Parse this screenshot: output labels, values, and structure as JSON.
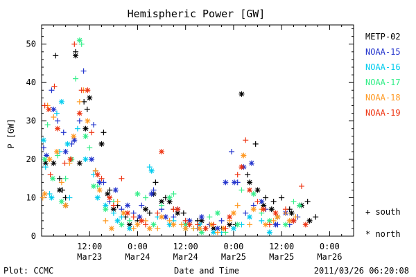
{
  "chart_data": {
    "type": "scatter",
    "title": "Hemispheric Power [GW]",
    "ylabel": "P [GW]",
    "xlabel": "Date and Time",
    "ylim": [
      0,
      55
    ],
    "xlim_hours_from_start": [
      0,
      78
    ],
    "y_ticks": [
      0,
      10,
      20,
      30,
      40,
      50
    ],
    "x_ticks": [
      {
        "time": "12:00",
        "date": "Mar23"
      },
      {
        "time": "0:00",
        "date": "Mar24"
      },
      {
        "time": "12:00",
        "date": "Mar24"
      },
      {
        "time": "0:00",
        "date": "Mar25"
      },
      {
        "time": "12:00",
        "date": "Mar25"
      },
      {
        "time": "0:00",
        "date": "Mar26"
      }
    ],
    "legend_placement": "right",
    "series": [
      {
        "name": "METP-02",
        "color": "#000000",
        "south": [
          [
            3.5,
            47
          ],
          [
            4.5,
            15
          ],
          [
            5.2,
            12
          ],
          [
            6,
            10
          ],
          [
            8.5,
            48
          ],
          [
            10.6,
            35
          ],
          [
            11.4,
            33
          ],
          [
            13.5,
            17
          ],
          [
            15.5,
            27
          ],
          [
            17,
            12
          ],
          [
            19,
            8
          ],
          [
            21,
            5
          ],
          [
            24,
            4
          ],
          [
            27,
            6
          ],
          [
            28.5,
            14
          ],
          [
            31,
            10
          ],
          [
            33,
            7
          ],
          [
            35.5,
            6
          ],
          [
            39,
            4
          ],
          [
            42,
            3
          ],
          [
            45,
            2
          ],
          [
            48.5,
            3
          ],
          [
            51.5,
            16
          ],
          [
            53.5,
            24
          ],
          [
            56,
            10
          ],
          [
            58,
            9
          ],
          [
            60,
            10
          ],
          [
            62,
            7
          ],
          [
            64.5,
            8
          ],
          [
            66.5,
            9
          ],
          [
            68.5,
            5
          ]
        ],
        "north": [
          [
            1,
            19
          ],
          [
            3,
            19
          ],
          [
            4.5,
            12
          ],
          [
            6,
            8
          ],
          [
            8.5,
            47
          ],
          [
            9.5,
            19
          ],
          [
            11,
            28
          ],
          [
            12,
            36
          ],
          [
            15,
            24
          ],
          [
            16.5,
            11
          ],
          [
            18,
            7
          ],
          [
            22,
            3
          ],
          [
            26,
            7
          ],
          [
            28,
            11
          ],
          [
            30,
            9
          ],
          [
            32,
            9
          ],
          [
            34,
            6
          ],
          [
            36,
            3
          ],
          [
            40,
            4
          ],
          [
            43,
            2
          ],
          [
            47,
            3
          ],
          [
            50,
            37
          ],
          [
            52,
            14
          ],
          [
            54,
            12
          ],
          [
            55.5,
            8
          ],
          [
            57.5,
            7
          ],
          [
            59,
            5
          ],
          [
            62.5,
            6
          ],
          [
            65,
            8
          ],
          [
            67,
            4
          ]
        ]
      },
      {
        "name": "NOAA-15",
        "color": "#2233cc",
        "south": [
          [
            0.5,
            23
          ],
          [
            2.5,
            38
          ],
          [
            4,
            30
          ],
          [
            5.5,
            27
          ],
          [
            7.5,
            24
          ],
          [
            9.5,
            30
          ],
          [
            10.5,
            43
          ],
          [
            13,
            29
          ],
          [
            15.5,
            14
          ],
          [
            17,
            9
          ],
          [
            20,
            7
          ],
          [
            23,
            6
          ],
          [
            25,
            8
          ],
          [
            28,
            12
          ],
          [
            30,
            7
          ],
          [
            33,
            5
          ],
          [
            36,
            4
          ],
          [
            39,
            2
          ],
          [
            42,
            3
          ],
          [
            45,
            4
          ],
          [
            47.5,
            22
          ],
          [
            49,
            14
          ],
          [
            51,
            6
          ],
          [
            53,
            8
          ],
          [
            56,
            7
          ],
          [
            59,
            3
          ],
          [
            62,
            3
          ],
          [
            64,
            5
          ]
        ],
        "north": [
          [
            1.2,
            21
          ],
          [
            3,
            33
          ],
          [
            6,
            22
          ],
          [
            8.2,
            25
          ],
          [
            12.5,
            20
          ],
          [
            14.5,
            14
          ],
          [
            18.5,
            12
          ],
          [
            21.5,
            8
          ],
          [
            24.5,
            5
          ],
          [
            27.5,
            11
          ],
          [
            31,
            5
          ],
          [
            34,
            7
          ],
          [
            37,
            4
          ],
          [
            40,
            5
          ],
          [
            44,
            2
          ],
          [
            46,
            14
          ],
          [
            48.2,
            14
          ],
          [
            50.5,
            18
          ],
          [
            52.5,
            19
          ],
          [
            55,
            9
          ],
          [
            58.5,
            3
          ],
          [
            61,
            6
          ],
          [
            63,
            4
          ]
        ]
      },
      {
        "name": "NOAA-16",
        "color": "#00ccee",
        "south": [
          [
            1,
            18
          ],
          [
            2,
            11
          ],
          [
            3.8,
            32
          ],
          [
            4.5,
            22
          ],
          [
            7,
            10
          ],
          [
            9,
            28
          ],
          [
            13,
            16
          ],
          [
            18,
            6
          ],
          [
            20,
            5
          ],
          [
            27,
            18
          ],
          [
            29,
            5
          ],
          [
            33,
            4
          ],
          [
            37,
            3
          ],
          [
            41,
            2
          ],
          [
            45,
            1
          ],
          [
            50,
            3
          ],
          [
            55,
            4
          ]
        ],
        "north": [
          [
            0.5,
            25
          ],
          [
            2.5,
            10
          ],
          [
            5,
            35
          ],
          [
            6.5,
            24
          ],
          [
            11,
            20
          ],
          [
            14,
            10
          ],
          [
            16,
            8
          ],
          [
            19,
            4
          ],
          [
            22,
            2
          ],
          [
            27.5,
            17
          ],
          [
            32,
            3
          ],
          [
            36,
            2
          ],
          [
            39.5,
            3
          ],
          [
            43,
            1
          ],
          [
            48,
            2
          ],
          [
            52,
            5
          ],
          [
            57,
            1
          ]
        ]
      },
      {
        "name": "NOAA-17",
        "color": "#33ee88",
        "south": [
          [
            1.5,
            29
          ],
          [
            4,
            21
          ],
          [
            6,
            15
          ],
          [
            8.5,
            41
          ],
          [
            10,
            50
          ],
          [
            12,
            23
          ],
          [
            14,
            13
          ],
          [
            18,
            9
          ],
          [
            22,
            4
          ],
          [
            26,
            10
          ],
          [
            30,
            8
          ],
          [
            33,
            11
          ],
          [
            38,
            2
          ],
          [
            42,
            5
          ],
          [
            46,
            1
          ],
          [
            50,
            12
          ],
          [
            55,
            6
          ],
          [
            59,
            5
          ],
          [
            63,
            9
          ]
        ],
        "north": [
          [
            0.8,
            20
          ],
          [
            2.8,
            15
          ],
          [
            5,
            9
          ],
          [
            7.5,
            20
          ],
          [
            9.5,
            51
          ],
          [
            11,
            26
          ],
          [
            13,
            13
          ],
          [
            16,
            7
          ],
          [
            20,
            3
          ],
          [
            24,
            11
          ],
          [
            28,
            3
          ],
          [
            32,
            10
          ],
          [
            36,
            3
          ],
          [
            40,
            1
          ],
          [
            44,
            6
          ],
          [
            49,
            3
          ],
          [
            53,
            11
          ],
          [
            57,
            4
          ],
          [
            61,
            3
          ],
          [
            64.5,
            8
          ]
        ]
      },
      {
        "name": "NOAA-18",
        "color": "#ff9922",
        "south": [
          [
            0.3,
            10
          ],
          [
            1.5,
            34
          ],
          [
            3,
            31
          ],
          [
            5,
            14
          ],
          [
            7,
            19
          ],
          [
            9.5,
            35
          ],
          [
            10.5,
            38
          ],
          [
            13.5,
            17
          ],
          [
            16,
            4
          ],
          [
            19,
            9
          ],
          [
            23,
            2
          ],
          [
            26,
            4
          ],
          [
            29,
            2
          ],
          [
            32,
            4
          ],
          [
            35,
            3
          ],
          [
            38,
            2
          ],
          [
            41,
            2
          ],
          [
            44,
            1
          ],
          [
            47,
            4
          ],
          [
            49,
            8
          ],
          [
            52,
            3
          ],
          [
            55,
            7
          ],
          [
            58,
            4
          ],
          [
            61,
            6
          ],
          [
            63.5,
            5
          ]
        ],
        "north": [
          [
            0.8,
            11
          ],
          [
            2,
            20
          ],
          [
            3.8,
            22
          ],
          [
            6,
            8
          ],
          [
            8,
            26
          ],
          [
            11.5,
            30
          ],
          [
            14.5,
            12
          ],
          [
            17.5,
            2
          ],
          [
            20.5,
            6
          ],
          [
            24,
            3
          ],
          [
            27,
            2
          ],
          [
            30,
            5
          ],
          [
            33,
            3
          ],
          [
            36,
            2
          ],
          [
            39.5,
            2
          ],
          [
            42.5,
            3
          ],
          [
            45.5,
            2
          ],
          [
            48,
            6
          ],
          [
            50.5,
            21
          ],
          [
            53,
            7
          ],
          [
            56,
            3
          ],
          [
            59,
            5
          ],
          [
            62,
            4
          ]
        ]
      },
      {
        "name": "NOAA-19",
        "color": "#ee3311",
        "south": [
          [
            0.8,
            34
          ],
          [
            2.2,
            16
          ],
          [
            3.2,
            39
          ],
          [
            5.8,
            19
          ],
          [
            8.2,
            50
          ],
          [
            10,
            38
          ],
          [
            12.5,
            27
          ],
          [
            15,
            15
          ],
          [
            18,
            8
          ],
          [
            20,
            15
          ],
          [
            23,
            5
          ],
          [
            26,
            3
          ],
          [
            29,
            6
          ],
          [
            33,
            7
          ],
          [
            36,
            4
          ],
          [
            39,
            3
          ],
          [
            43,
            3
          ],
          [
            46,
            2
          ],
          [
            49,
            16
          ],
          [
            51,
            25
          ],
          [
            54,
            9
          ],
          [
            57,
            3
          ],
          [
            61,
            7
          ],
          [
            65,
            13
          ]
        ],
        "north": [
          [
            1.8,
            33
          ],
          [
            4,
            28
          ],
          [
            7.2,
            20
          ],
          [
            9.5,
            32
          ],
          [
            11.5,
            38
          ],
          [
            14,
            16
          ],
          [
            17,
            10
          ],
          [
            21.5,
            6
          ],
          [
            25,
            4
          ],
          [
            30,
            22
          ],
          [
            34,
            7
          ],
          [
            37,
            3
          ],
          [
            41,
            2
          ],
          [
            47,
            5
          ],
          [
            50,
            18
          ],
          [
            52,
            12
          ],
          [
            55.5,
            7
          ],
          [
            58.5,
            6
          ],
          [
            63,
            4
          ],
          [
            66,
            3
          ]
        ]
      }
    ],
    "marker_legend": {
      "south": "+ south",
      "north": "* north"
    }
  },
  "footer": {
    "left": "Plot: CCMC",
    "center": "Date and Time",
    "right": "2011/03/26 06:20:08"
  }
}
